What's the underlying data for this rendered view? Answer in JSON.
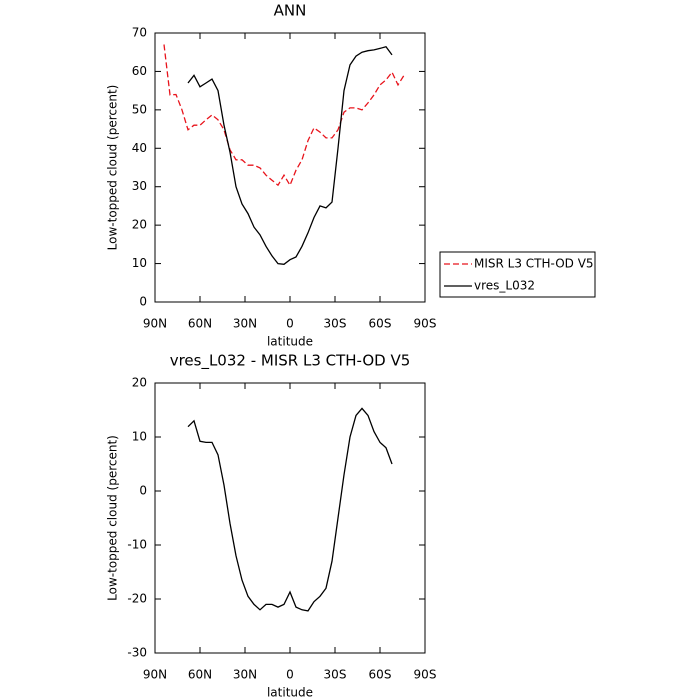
{
  "chart_data": [
    {
      "type": "line",
      "title": "ANN",
      "xlabel": "latitude",
      "ylabel": "Low-topped cloud (percent)",
      "x": [
        84,
        80,
        76,
        72,
        68,
        64,
        60,
        56,
        52,
        48,
        44,
        40,
        36,
        32,
        28,
        24,
        20,
        16,
        12,
        8,
        4,
        0,
        -4,
        -8,
        -12,
        -16,
        -20,
        -24,
        -28,
        -32,
        -36,
        -40,
        -44,
        -48,
        -52,
        -56,
        -60,
        -64,
        -68,
        -72,
        -76
      ],
      "series": [
        {
          "name": "MISR L3 CTH-OD V5",
          "color": "#e8141c",
          "dash": "dashed",
          "values": [
            67,
            53.9,
            54,
            50,
            44.8,
            46,
            46,
            47.4,
            48.7,
            47.4,
            44.8,
            39.6,
            37,
            37,
            35.6,
            35.6,
            34.9,
            33,
            31.7,
            30.4,
            33,
            30.4,
            34.3,
            37,
            42,
            45.3,
            44.2,
            42.7,
            42.7,
            44.8,
            49.4,
            50.5,
            50.5,
            50,
            51.8,
            53.9,
            56.5,
            57.8,
            59.8,
            56.5,
            59
          ]
        },
        {
          "name": "vres_L032",
          "color": "#000000",
          "dash": "solid",
          "values": [
            null,
            null,
            null,
            null,
            57,
            59,
            56,
            57,
            58,
            55,
            46,
            39,
            30,
            25.5,
            23,
            19.5,
            17.5,
            14.5,
            12,
            10,
            9.8,
            11,
            11.7,
            14.5,
            18,
            22,
            25,
            24.5,
            26,
            40,
            55,
            61.7,
            64,
            65,
            65.4,
            65.6,
            66,
            66.4,
            64.3,
            null,
            null
          ]
        }
      ],
      "xlim": [
        90,
        -90
      ],
      "ylim": [
        0,
        70
      ],
      "xticks": [
        {
          "value": 90,
          "label": "90N"
        },
        {
          "value": 60,
          "label": "60N"
        },
        {
          "value": 30,
          "label": "30N"
        },
        0,
        {
          "value": -30,
          "label": "30S"
        },
        {
          "value": -60,
          "label": "60S"
        },
        {
          "value": -90,
          "label": "90S"
        }
      ],
      "yticks": [
        0,
        10,
        20,
        30,
        40,
        50,
        60,
        70
      ],
      "legend": "right"
    },
    {
      "type": "line",
      "title": "vres_L032 - MISR L3 CTH-OD V5",
      "xlabel": "latitude",
      "ylabel": "Low-topped cloud (percent)",
      "x": [
        68,
        64,
        60,
        56,
        52,
        48,
        44,
        40,
        36,
        32,
        28,
        24,
        20,
        16,
        12,
        8,
        4,
        0,
        -4,
        -8,
        -12,
        -16,
        -20,
        -24,
        -28,
        -32,
        -36,
        -40,
        -44,
        -48,
        -52,
        -56,
        -60,
        -64,
        -68
      ],
      "series": [
        {
          "color": "#000000",
          "dash": "solid",
          "values": [
            11.9,
            13,
            9.2,
            9,
            9,
            6.7,
            1.1,
            -6,
            -12,
            -16.5,
            -19.5,
            -21,
            -22,
            -21,
            -21,
            -21.5,
            -21,
            -18.7,
            -21.5,
            -22,
            -22.2,
            -20.5,
            -19.5,
            -18,
            -13,
            -5,
            3,
            10,
            14,
            15.3,
            14,
            11,
            9,
            8,
            5
          ]
        }
      ],
      "xlim": [
        90,
        -90
      ],
      "ylim": [
        -30,
        20
      ],
      "xticks": [
        {
          "value": 90,
          "label": "90N"
        },
        {
          "value": 60,
          "label": "60N"
        },
        {
          "value": 30,
          "label": "30N"
        },
        0,
        {
          "value": -30,
          "label": "30S"
        },
        {
          "value": -60,
          "label": "60S"
        },
        {
          "value": -90,
          "label": "90S"
        }
      ],
      "yticks": [
        -30,
        -20,
        -10,
        0,
        10,
        20
      ],
      "legend": "none"
    }
  ]
}
